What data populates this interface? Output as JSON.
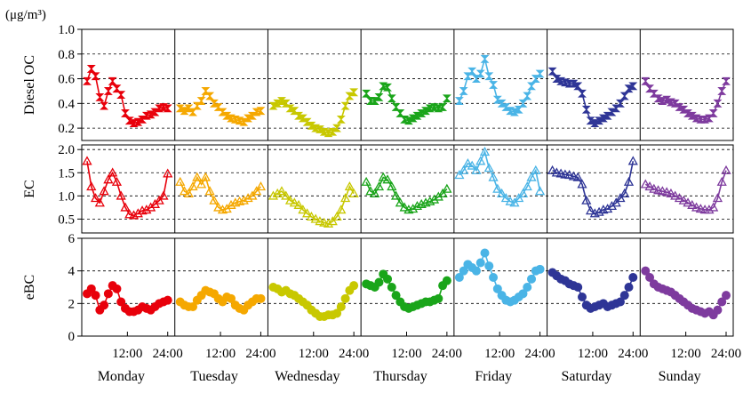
{
  "chart_data": {
    "type": "line",
    "unit_label": "(μg/m³)",
    "days": [
      "Monday",
      "Tuesday",
      "Wednesday",
      "Thursday",
      "Friday",
      "Saturday",
      "Sunday"
    ],
    "day_tick_labels": [
      "12:00",
      "24:00"
    ],
    "x_unit": "hours of day",
    "xlim": [
      0,
      24
    ],
    "colors": [
      "#e8000b",
      "#f5a800",
      "#c8c800",
      "#1aa51a",
      "#4ab4e6",
      "#2e3596",
      "#7e3b9e"
    ],
    "grid": "horizontal dashed",
    "panels": [
      {
        "ylabel": "Diesel OC",
        "ylim": [
          0.1,
          1.0
        ],
        "yticks": [
          "0.2",
          "0.4",
          "0.6",
          "0.8",
          "1.0"
        ],
        "marker": "bowtie",
        "series": [
          {
            "day": "Monday",
            "values": [
              0.58,
              0.68,
              0.62,
              0.45,
              0.38,
              0.5,
              0.58,
              0.52,
              0.47,
              0.32,
              0.26,
              0.24,
              0.25,
              0.27,
              0.3,
              0.31,
              0.33,
              0.36,
              0.37,
              0.36
            ]
          },
          {
            "day": "Tuesday",
            "values": [
              0.36,
              0.34,
              0.36,
              0.33,
              0.38,
              0.42,
              0.5,
              0.46,
              0.4,
              0.37,
              0.33,
              0.3,
              0.28,
              0.27,
              0.26,
              0.25,
              0.28,
              0.3,
              0.33,
              0.34
            ]
          },
          {
            "day": "Wednesday",
            "values": [
              0.38,
              0.4,
              0.42,
              0.4,
              0.36,
              0.34,
              0.3,
              0.28,
              0.25,
              0.22,
              0.2,
              0.19,
              0.17,
              0.16,
              0.17,
              0.2,
              0.27,
              0.38,
              0.46,
              0.49
            ]
          },
          {
            "day": "Thursday",
            "values": [
              0.48,
              0.42,
              0.42,
              0.45,
              0.54,
              0.53,
              0.44,
              0.37,
              0.32,
              0.27,
              0.26,
              0.28,
              0.3,
              0.32,
              0.34,
              0.36,
              0.37,
              0.36,
              0.37,
              0.44
            ]
          },
          {
            "day": "Friday",
            "values": [
              0.42,
              0.5,
              0.62,
              0.66,
              0.6,
              0.64,
              0.76,
              0.62,
              0.55,
              0.43,
              0.4,
              0.37,
              0.34,
              0.33,
              0.35,
              0.4,
              0.46,
              0.54,
              0.6,
              0.64
            ]
          },
          {
            "day": "Saturday",
            "values": [
              0.66,
              0.6,
              0.58,
              0.57,
              0.56,
              0.56,
              0.54,
              0.48,
              0.35,
              0.26,
              0.24,
              0.26,
              0.28,
              0.3,
              0.33,
              0.36,
              0.4,
              0.46,
              0.52,
              0.54
            ]
          },
          {
            "day": "Sunday",
            "values": [
              0.58,
              0.52,
              0.48,
              0.44,
              0.42,
              0.43,
              0.41,
              0.4,
              0.37,
              0.35,
              0.32,
              0.3,
              0.28,
              0.27,
              0.27,
              0.28,
              0.32,
              0.4,
              0.5,
              0.58
            ]
          }
        ]
      },
      {
        "ylabel": "EC",
        "ylim": [
          0.2,
          2.1
        ],
        "yticks": [
          "0.5",
          "1.0",
          "1.5",
          "2.0"
        ],
        "marker": "triangle",
        "series": [
          {
            "day": "Monday",
            "values": [
              1.75,
              1.2,
              0.95,
              0.85,
              1.1,
              1.35,
              1.5,
              1.3,
              1.0,
              0.75,
              0.6,
              0.58,
              0.62,
              0.68,
              0.7,
              0.75,
              0.82,
              0.9,
              1.0,
              1.48
            ]
          },
          {
            "day": "Tuesday",
            "values": [
              1.3,
              1.1,
              1.05,
              1.2,
              1.4,
              1.25,
              1.4,
              1.1,
              0.9,
              0.75,
              0.7,
              0.72,
              0.8,
              0.85,
              0.88,
              0.9,
              0.95,
              1.0,
              1.1,
              1.2
            ]
          },
          {
            "day": "Wednesday",
            "values": [
              1.0,
              1.05,
              1.1,
              1.0,
              0.9,
              0.85,
              0.8,
              0.7,
              0.62,
              0.55,
              0.5,
              0.45,
              0.42,
              0.4,
              0.45,
              0.55,
              0.7,
              0.95,
              1.2,
              1.05
            ]
          },
          {
            "day": "Thursday",
            "values": [
              1.3,
              1.1,
              1.05,
              1.2,
              1.4,
              1.35,
              1.2,
              1.0,
              0.85,
              0.75,
              0.7,
              0.72,
              0.78,
              0.82,
              0.85,
              0.88,
              0.92,
              0.98,
              1.05,
              1.15
            ]
          },
          {
            "day": "Friday",
            "values": [
              1.45,
              1.55,
              1.7,
              1.65,
              1.55,
              1.75,
              1.95,
              1.6,
              1.4,
              1.15,
              1.05,
              0.95,
              0.88,
              0.85,
              0.95,
              1.05,
              1.2,
              1.4,
              1.55,
              1.1
            ]
          },
          {
            "day": "Saturday",
            "values": [
              1.55,
              1.5,
              1.48,
              1.46,
              1.45,
              1.42,
              1.4,
              1.25,
              0.9,
              0.68,
              0.62,
              0.65,
              0.7,
              0.72,
              0.78,
              0.85,
              0.95,
              1.05,
              1.3,
              1.75
            ]
          },
          {
            "day": "Sunday",
            "values": [
              1.25,
              1.2,
              1.15,
              1.12,
              1.1,
              1.08,
              1.05,
              1.0,
              0.95,
              0.9,
              0.85,
              0.8,
              0.75,
              0.72,
              0.7,
              0.7,
              0.75,
              0.95,
              1.3,
              1.55
            ]
          }
        ]
      },
      {
        "ylabel": "eBC",
        "ylim": [
          0,
          6
        ],
        "yticks": [
          "0",
          "2",
          "4",
          "6"
        ],
        "marker": "circle",
        "series": [
          {
            "day": "Monday",
            "values": [
              2.6,
              2.9,
              2.5,
              1.6,
              1.9,
              2.6,
              3.1,
              2.9,
              2.1,
              1.7,
              1.5,
              1.5,
              1.6,
              1.8,
              1.7,
              1.6,
              1.8,
              2.0,
              2.1,
              2.2
            ]
          },
          {
            "day": "Tuesday",
            "values": [
              2.1,
              1.9,
              1.8,
              1.8,
              2.2,
              2.5,
              2.8,
              2.7,
              2.6,
              2.3,
              2.1,
              2.4,
              2.3,
              1.9,
              1.7,
              1.6,
              1.9,
              2.1,
              2.3,
              2.3
            ]
          },
          {
            "day": "Wednesday",
            "values": [
              3.0,
              2.9,
              2.7,
              2.8,
              2.6,
              2.5,
              2.3,
              2.1,
              1.9,
              1.6,
              1.4,
              1.2,
              1.2,
              1.3,
              1.3,
              1.4,
              1.8,
              2.3,
              2.8,
              3.1
            ]
          },
          {
            "day": "Thursday",
            "values": [
              3.2,
              3.1,
              3.0,
              3.3,
              3.8,
              3.5,
              3.0,
              2.5,
              2.1,
              1.8,
              1.7,
              1.8,
              1.9,
              2.0,
              2.1,
              2.1,
              2.2,
              2.3,
              3.1,
              3.4
            ]
          },
          {
            "day": "Friday",
            "values": [
              3.6,
              4.0,
              4.4,
              4.2,
              4.0,
              4.5,
              5.1,
              4.3,
              3.6,
              2.9,
              2.5,
              2.2,
              2.1,
              2.2,
              2.4,
              2.6,
              3.0,
              3.5,
              4.0,
              4.1
            ]
          },
          {
            "day": "Saturday",
            "values": [
              3.9,
              3.7,
              3.5,
              3.4,
              3.2,
              3.1,
              3.0,
              2.4,
              1.9,
              1.7,
              1.8,
              1.9,
              2.0,
              1.8,
              1.9,
              2.0,
              2.1,
              2.5,
              3.0,
              3.6
            ]
          },
          {
            "day": "Sunday",
            "values": [
              4.0,
              3.6,
              3.2,
              3.0,
              2.9,
              2.8,
              2.7,
              2.5,
              2.3,
              2.1,
              1.9,
              1.7,
              1.6,
              1.5,
              1.4,
              1.5,
              1.3,
              1.6,
              2.1,
              2.5
            ]
          }
        ]
      }
    ]
  }
}
